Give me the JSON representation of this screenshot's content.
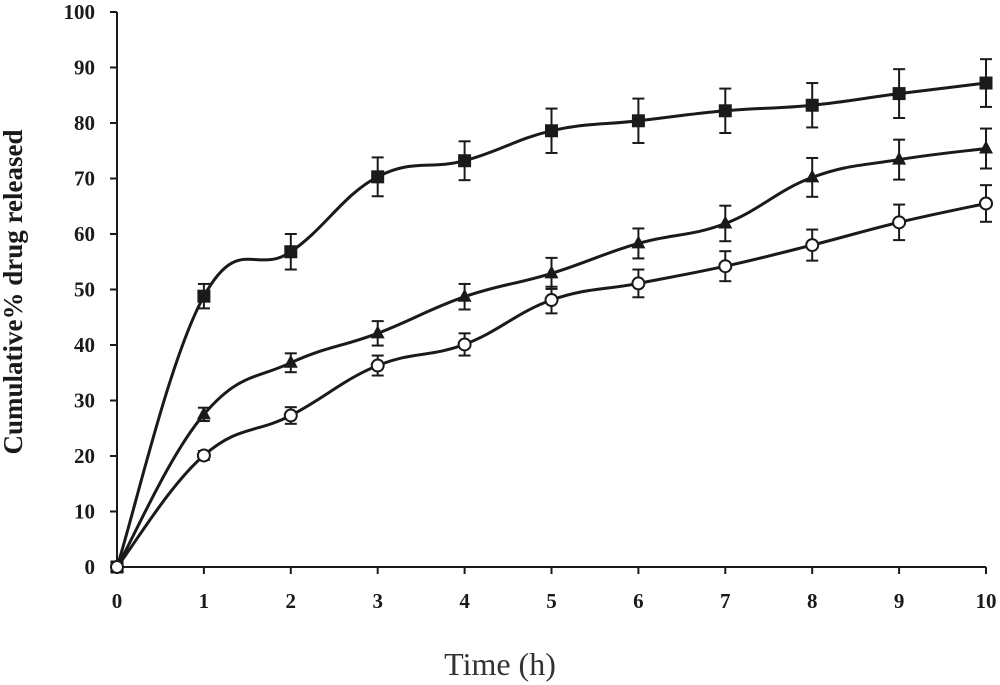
{
  "chart_data": {
    "type": "line",
    "title": "",
    "xlabel": "Time (h)",
    "ylabel": "Cumulative% drug released",
    "x": [
      0,
      1,
      2,
      3,
      4,
      5,
      6,
      7,
      8,
      9,
      10
    ],
    "xlim": [
      0,
      10
    ],
    "ylim": [
      0,
      100
    ],
    "xticks": [
      "0",
      "1",
      "2",
      "3",
      "4",
      "5",
      "6",
      "7",
      "8",
      "9",
      "10"
    ],
    "yticks": [
      "0",
      "10",
      "20",
      "30",
      "40",
      "50",
      "60",
      "70",
      "80",
      "90",
      "100"
    ],
    "grid": false,
    "legend": "none",
    "color": "#1a1a1a",
    "series": [
      {
        "marker": "filled-square",
        "values": [
          0,
          48.8,
          56.8,
          70.3,
          73.2,
          78.6,
          80.4,
          82.2,
          83.2,
          85.3,
          87.2
        ],
        "errors": [
          0,
          2.2,
          3.2,
          3.5,
          3.5,
          4.0,
          4.0,
          4.0,
          4.0,
          4.4,
          4.3
        ]
      },
      {
        "marker": "filled-triangle",
        "values": [
          0,
          27.5,
          36.8,
          42.1,
          48.7,
          52.9,
          58.3,
          61.9,
          70.2,
          73.4,
          75.4
        ],
        "errors": [
          0,
          1.2,
          1.7,
          2.2,
          2.3,
          2.8,
          2.7,
          3.2,
          3.5,
          3.6,
          3.6
        ]
      },
      {
        "marker": "open-circle",
        "values": [
          0,
          20.1,
          27.3,
          36.3,
          40.1,
          48.1,
          51.1,
          54.2,
          58.0,
          62.1,
          65.5
        ],
        "errors": [
          0,
          0.8,
          1.5,
          1.8,
          2.0,
          2.4,
          2.5,
          2.7,
          2.8,
          3.2,
          3.3
        ]
      }
    ]
  }
}
